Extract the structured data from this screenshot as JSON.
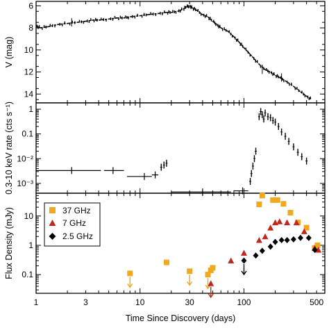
{
  "chart_data": [
    {
      "type": "line",
      "panel": "optical",
      "ylabel": "V (mag)",
      "y_inverted": true,
      "ylim": [
        14.8,
        5.6
      ],
      "xlim": [
        1,
        600
      ],
      "x_scale": "log",
      "ytick_labels": [
        "6",
        "8",
        "10",
        "12",
        "14"
      ],
      "ytick_values": [
        6,
        8,
        10,
        12,
        14
      ],
      "series": [
        {
          "x": [
            1.0,
            1.1,
            1.3,
            1.6,
            2.0,
            2.5,
            3.0,
            3.5,
            4.0,
            5.0,
            6.0,
            7.0,
            8.0,
            10.0,
            12.0,
            15.0,
            18.0,
            20.0,
            23.0,
            26.0,
            28.0,
            30.0,
            32.0,
            35.0,
            40.0,
            45.0,
            50.0,
            55.0,
            60.0,
            70.0,
            80.0,
            90.0,
            100.0,
            120.0,
            140.0,
            160.0,
            180.0,
            200.0,
            220.0,
            250.0,
            300.0,
            350.0,
            400.0,
            450.0
          ],
          "y": [
            7.8,
            8.0,
            7.9,
            7.7,
            7.6,
            7.5,
            7.4,
            7.3,
            7.3,
            7.2,
            7.1,
            7.1,
            7.0,
            6.9,
            6.8,
            6.7,
            6.6,
            6.6,
            6.5,
            6.3,
            6.1,
            6.0,
            6.2,
            6.4,
            6.8,
            7.0,
            7.4,
            7.7,
            8.0,
            8.3,
            8.8,
            9.3,
            9.8,
            10.6,
            11.3,
            11.8,
            12.0,
            12.3,
            12.5,
            12.8,
            13.3,
            13.8,
            14.2,
            14.5
          ]
        }
      ]
    },
    {
      "type": "scatter",
      "panel": "xray",
      "ylabel": "0.3-10 keV rate (cts s⁻¹)",
      "y_scale": "log",
      "ylim": [
        0.0004,
        1.8
      ],
      "xlim": [
        1,
        600
      ],
      "x_scale": "log",
      "ytick_labels": [
        "1",
        "0.1",
        "10⁻²",
        "10⁻³"
      ],
      "ytick_values": [
        1,
        0.1,
        0.01,
        0.001
      ],
      "binned_points": [
        {
          "x": 2.2,
          "x_lo": 1.0,
          "x_hi": 4.2,
          "y": 0.0033
        },
        {
          "x": 5.5,
          "x_lo": 4.5,
          "x_hi": 7.0,
          "y": 0.0033
        },
        {
          "x": 11.0,
          "x_lo": 7.5,
          "x_hi": 13.0,
          "y": 0.0019
        },
        {
          "x": 14.0,
          "x_lo": 13.0,
          "x_hi": 15.0,
          "y": 0.0022
        },
        {
          "x": 40.0,
          "x_lo": 20.0,
          "x_hi": 75.0,
          "y": 0.00045
        },
        {
          "x": 97.0,
          "x_lo": 80.0,
          "x_hi": 110.0,
          "y": 0.0005
        }
      ],
      "points": [
        {
          "x": 16.0,
          "y": 0.0045
        },
        {
          "x": 17.0,
          "y": 0.0055
        },
        {
          "x": 18.0,
          "y": 0.0065
        },
        {
          "x": 115.0,
          "y": 0.0012
        },
        {
          "x": 118.0,
          "y": 0.0025
        },
        {
          "x": 122.0,
          "y": 0.005
        },
        {
          "x": 126.0,
          "y": 0.01
        },
        {
          "x": 130.0,
          "y": 0.02
        },
        {
          "x": 140.0,
          "y": 0.5
        },
        {
          "x": 145.0,
          "y": 0.8
        },
        {
          "x": 150.0,
          "y": 0.6
        },
        {
          "x": 155.0,
          "y": 0.4
        },
        {
          "x": 160.0,
          "y": 0.7
        },
        {
          "x": 170.0,
          "y": 0.5
        },
        {
          "x": 180.0,
          "y": 0.45
        },
        {
          "x": 190.0,
          "y": 0.35
        },
        {
          "x": 200.0,
          "y": 0.3
        },
        {
          "x": 215.0,
          "y": 0.2
        },
        {
          "x": 230.0,
          "y": 0.12
        },
        {
          "x": 250.0,
          "y": 0.08
        },
        {
          "x": 270.0,
          "y": 0.05
        },
        {
          "x": 300.0,
          "y": 0.03
        },
        {
          "x": 330.0,
          "y": 0.018
        },
        {
          "x": 360.0,
          "y": 0.012
        },
        {
          "x": 400.0,
          "y": 0.008
        }
      ]
    },
    {
      "type": "scatter",
      "panel": "radio",
      "xlabel": "Time Since Discovery (days)",
      "ylabel": "Flux Density (mJy)",
      "x_scale": "log",
      "y_scale": "log",
      "xlim": [
        1,
        600
      ],
      "ylim": [
        0.023,
        60
      ],
      "xtick_labels": [
        "1",
        "3",
        "10",
        "30",
        "100",
        "500"
      ],
      "xtick_values": [
        1,
        3,
        10,
        30,
        100,
        500
      ],
      "ytick_labels": [
        "10",
        "1",
        "0.1"
      ],
      "ytick_values": [
        10,
        1,
        0.1
      ],
      "legend_position": "top-left",
      "series": [
        {
          "name": "37 GHz",
          "marker": "square",
          "color": "#f0a81e",
          "x": [
            8.0,
            18.0,
            30.0,
            45.0,
            48.0,
            50.0,
            140.0,
            150.0,
            190.0,
            210.0,
            240.0,
            280.0,
            330.0,
            400.0,
            480.0,
            510.0
          ],
          "y": [
            0.11,
            0.26,
            0.13,
            0.1,
            0.14,
            0.17,
            25.0,
            50.0,
            35.0,
            35.0,
            26.0,
            13.0,
            6.0,
            4.0,
            0.8,
            1.0
          ],
          "upper_limit_x": [
            8.0,
            30.0,
            45.0
          ]
        },
        {
          "name": "7 GHz",
          "marker": "triangle",
          "color": "#c0281e",
          "x": [
            48.0,
            75.0,
            100.0,
            140.0,
            160.0,
            180.0,
            200.0,
            220.0,
            260.0,
            320.0,
            380.0,
            480.0,
            520.0
          ],
          "y": [
            0.05,
            0.3,
            0.55,
            1.5,
            2.0,
            4.0,
            6.0,
            6.5,
            6.0,
            6.0,
            3.0,
            0.8,
            0.7
          ],
          "upper_limit_x": [
            48.0
          ]
        },
        {
          "name": "2.5 GHz",
          "marker": "diamond",
          "color": "#000000",
          "x": [
            100.0,
            130.0,
            150.0,
            180.0,
            200.0,
            230.0,
            260.0,
            300.0,
            350.0,
            420.0,
            480.0
          ],
          "y": [
            0.3,
            0.45,
            0.65,
            0.9,
            1.3,
            1.5,
            1.5,
            1.6,
            1.8,
            1.8,
            0.7
          ],
          "upper_limit_x": [
            100.0
          ]
        }
      ]
    }
  ]
}
